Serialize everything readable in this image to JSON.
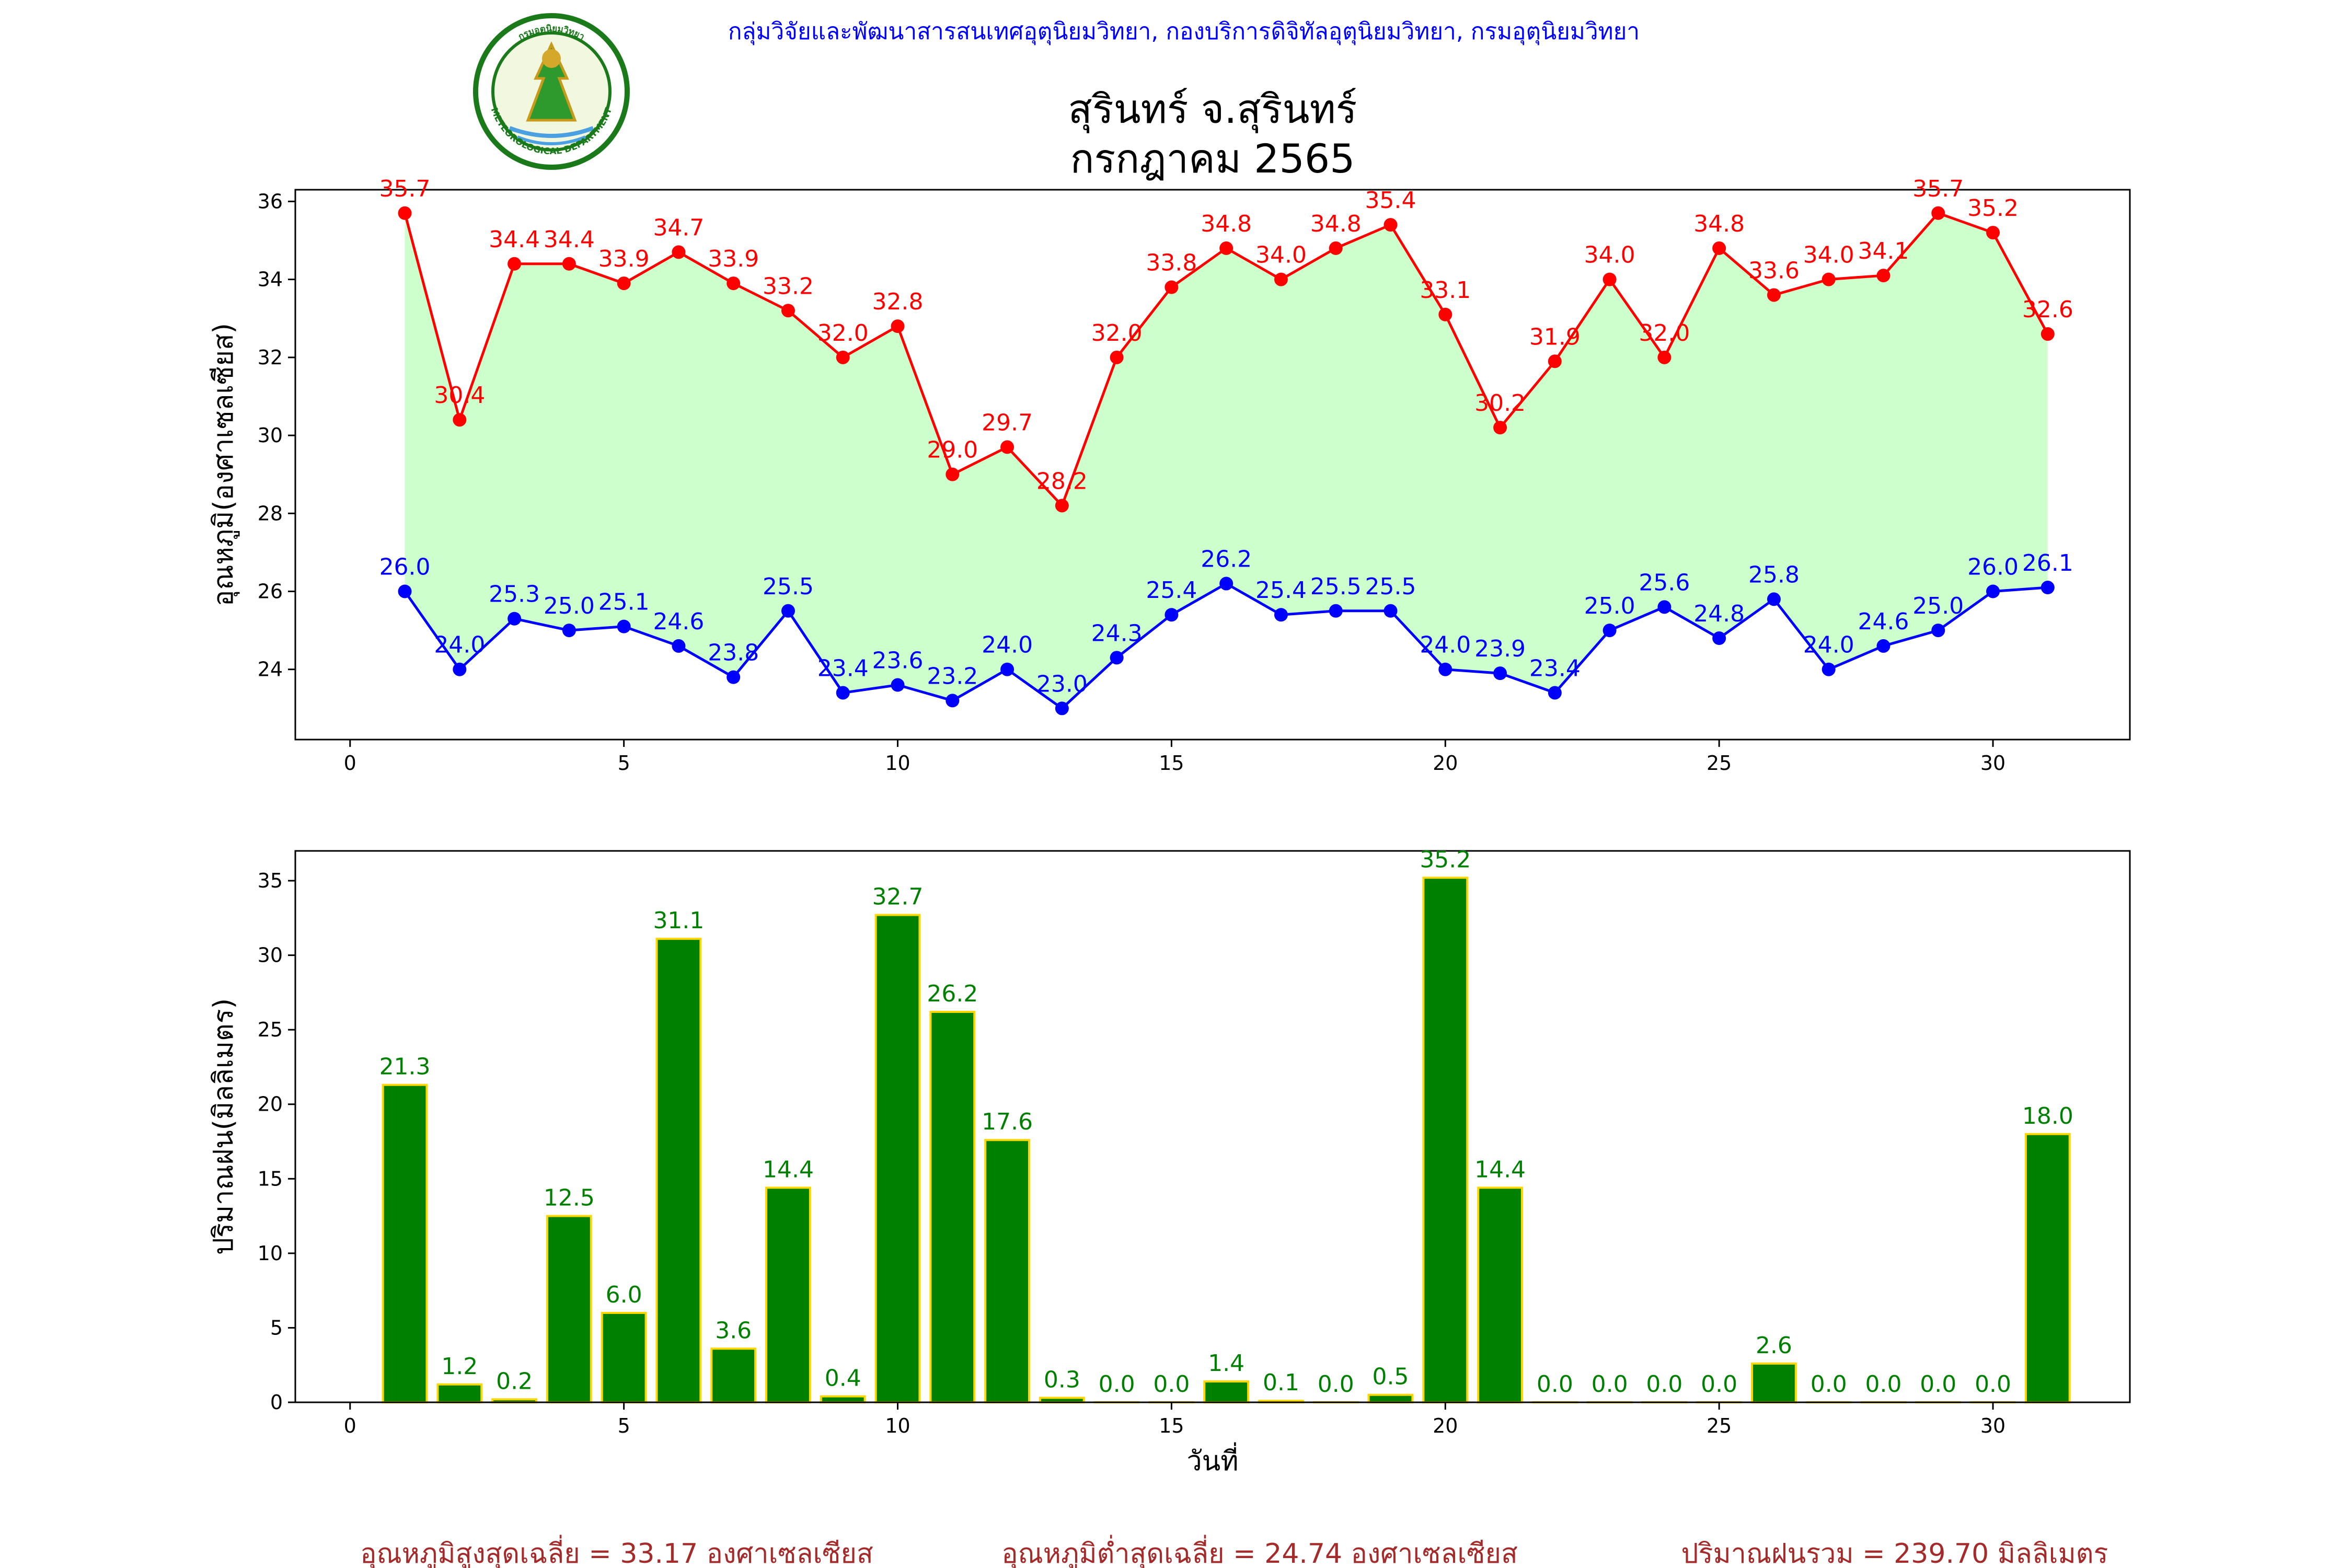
{
  "header": {
    "agency": "กลุ่มวิจัยและพัฒนาสารสนเทศอุตุนิยมวิทยา, กองบริการดิจิทัลอุตุนิยมวิทยา, กรมอุตุนิยมวิทยา",
    "title_line1": "สุรินทร์ จ.สุรินทร์",
    "title_line2": "กรกฎาคม 2565",
    "logo_text_top": "กรมอุตุนิยมวิทยา",
    "logo_text_bottom": "METEOROLOGICAL DEPARTMENT"
  },
  "footer": {
    "avg_max": "อุณหภูมิสูงสุดเฉลี่ย = 33.17 องศาเซลเซียส",
    "avg_min": "อุณหภูมิต่ำสุดเฉลี่ย = 24.74 องศาเซลเซียส",
    "rain_total": "ปริมาณฝนรวม = 239.70 มิลลิเมตร"
  },
  "colors": {
    "max_line": "#ff0000",
    "min_line": "#0000ff",
    "fill": "#ccffcc",
    "bar": "#008000",
    "bar_edge": "#ffd700",
    "bar_label": "#008000"
  },
  "chart_data": [
    {
      "type": "line",
      "title": "",
      "xlabel": "",
      "ylabel": "อุณหภูมิ(องศาเซลเซียส)",
      "xlim": [
        -1,
        32.5
      ],
      "ylim": [
        22.2,
        36.3
      ],
      "xticks": [
        0,
        5,
        10,
        15,
        20,
        25,
        30
      ],
      "yticks": [
        24,
        26,
        28,
        30,
        32,
        34,
        36
      ],
      "x": [
        1,
        2,
        3,
        4,
        5,
        6,
        7,
        8,
        9,
        10,
        11,
        12,
        13,
        14,
        15,
        16,
        17,
        18,
        19,
        20,
        21,
        22,
        23,
        24,
        25,
        26,
        27,
        28,
        29,
        30,
        31
      ],
      "series": [
        {
          "color": "#ff0000",
          "values": [
            35.7,
            30.4,
            34.4,
            34.4,
            33.9,
            34.7,
            33.9,
            33.2,
            32.0,
            32.8,
            29.0,
            29.7,
            28.2,
            32.0,
            33.8,
            34.8,
            34.0,
            34.8,
            35.4,
            33.1,
            30.2,
            31.9,
            34.0,
            32.0,
            34.8,
            33.6,
            34.0,
            34.1,
            35.7,
            35.2,
            32.6
          ]
        },
        {
          "color": "#0000ff",
          "values": [
            26.0,
            24.0,
            25.3,
            25.0,
            25.1,
            24.6,
            23.8,
            25.5,
            23.4,
            23.6,
            23.2,
            24.0,
            23.0,
            24.3,
            25.4,
            26.2,
            25.4,
            25.5,
            25.5,
            24.0,
            23.9,
            23.4,
            25.0,
            25.6,
            24.8,
            25.8,
            24.0,
            24.6,
            25.0,
            26.0,
            26.1
          ]
        }
      ],
      "grid": false
    },
    {
      "type": "bar",
      "title": "",
      "xlabel": "วันที่",
      "ylabel": "ปริมาณฝน(มิลลิเมตร)",
      "xlim": [
        -1,
        32.5
      ],
      "ylim": [
        0,
        37
      ],
      "xticks": [
        0,
        5,
        10,
        15,
        20,
        25,
        30
      ],
      "yticks": [
        0,
        5,
        10,
        15,
        20,
        25,
        30,
        35
      ],
      "x": [
        1,
        2,
        3,
        4,
        5,
        6,
        7,
        8,
        9,
        10,
        11,
        12,
        13,
        14,
        15,
        16,
        17,
        18,
        19,
        20,
        21,
        22,
        23,
        24,
        25,
        26,
        27,
        28,
        29,
        30,
        31
      ],
      "values": [
        21.3,
        1.2,
        0.2,
        12.5,
        6.0,
        31.1,
        3.6,
        14.4,
        0.4,
        32.7,
        26.2,
        17.6,
        0.3,
        0.0,
        0.0,
        1.4,
        0.1,
        0.0,
        0.5,
        35.2,
        14.4,
        0.0,
        0.0,
        0.0,
        0.0,
        2.6,
        0.0,
        0.0,
        0.0,
        0.0,
        18.0
      ],
      "grid": false
    }
  ]
}
